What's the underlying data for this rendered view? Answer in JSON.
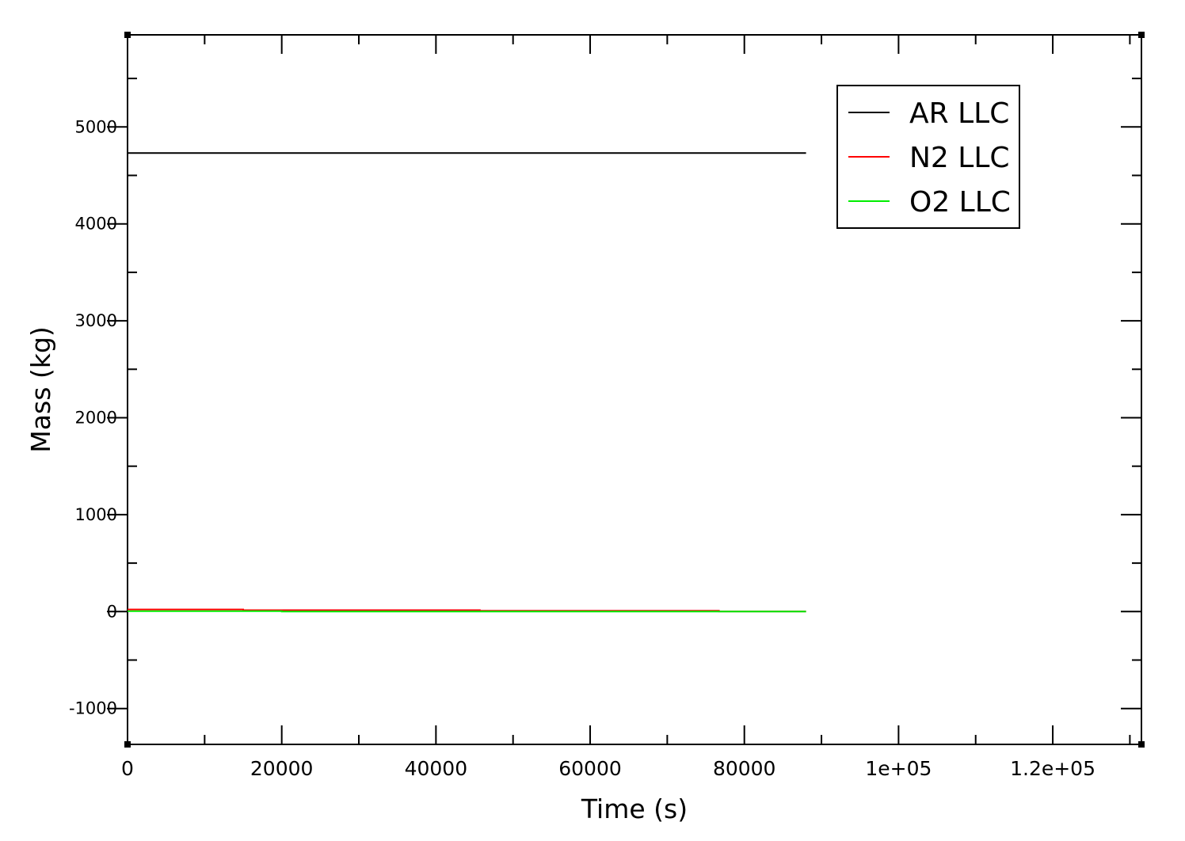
{
  "chart_data": {
    "type": "line",
    "title": "",
    "xlabel": "Time (s)",
    "ylabel": "Mass (kg)",
    "xlim": [
      0,
      131500
    ],
    "ylim": [
      -1370,
      5950
    ],
    "x_ticks": [
      {
        "value": 0,
        "label": "0"
      },
      {
        "value": 20000,
        "label": "20000"
      },
      {
        "value": 40000,
        "label": "40000"
      },
      {
        "value": 60000,
        "label": "60000"
      },
      {
        "value": 80000,
        "label": "80000"
      },
      {
        "value": 100000,
        "label": "1e+05"
      },
      {
        "value": 120000,
        "label": "1.2e+05"
      }
    ],
    "y_ticks": [
      {
        "value": -1000,
        "label": "-1000"
      },
      {
        "value": 0,
        "label": "0"
      },
      {
        "value": 1000,
        "label": "1000"
      },
      {
        "value": 2000,
        "label": "2000"
      },
      {
        "value": 3000,
        "label": "3000"
      },
      {
        "value": 4000,
        "label": "4000"
      },
      {
        "value": 5000,
        "label": "5000"
      }
    ],
    "x_minor_step": 10000,
    "y_minor_step": 500,
    "grid": false,
    "legend_position": "top-right",
    "series": [
      {
        "name": "AR LLC",
        "color": "#000000",
        "x": [
          0,
          88000
        ],
        "y": [
          4730,
          4730
        ]
      },
      {
        "name": "N2 LLC",
        "color": "#ff0000",
        "x": [
          0,
          15000,
          15000,
          45700,
          45700,
          76700,
          76700,
          88000
        ],
        "y": [
          22,
          22,
          15,
          15,
          8,
          8,
          2,
          2
        ]
      },
      {
        "name": "O2 LLC",
        "color": "#00ee00",
        "x": [
          0,
          20000,
          20000,
          88000
        ],
        "y": [
          5,
          5,
          0,
          0
        ]
      }
    ]
  }
}
